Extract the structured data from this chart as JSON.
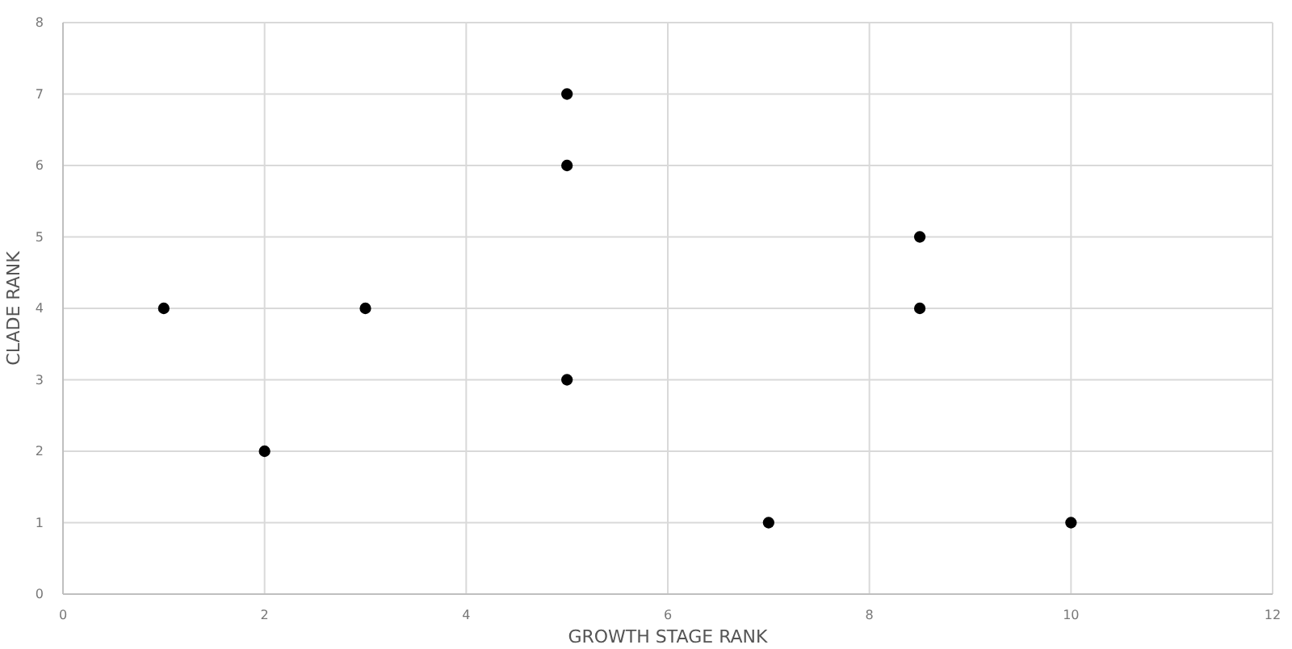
{
  "chart_data": {
    "type": "scatter",
    "xlabel": "GROWTH STAGE RANK",
    "ylabel": "CLADE RANK",
    "x": [
      1,
      2,
      3,
      5,
      5,
      5,
      7,
      8.5,
      8.5,
      10
    ],
    "values": [
      4,
      2,
      4,
      7,
      6,
      3,
      1,
      5,
      4,
      1
    ],
    "color": "#000000",
    "marker": "circle",
    "xlim": [
      0,
      12
    ],
    "xticks": [
      0,
      2,
      4,
      6,
      8,
      10,
      12
    ],
    "ylim": [
      0,
      8
    ],
    "yticks": [
      0,
      1,
      2,
      3,
      4,
      5,
      6,
      7,
      8
    ],
    "grid": true
  }
}
